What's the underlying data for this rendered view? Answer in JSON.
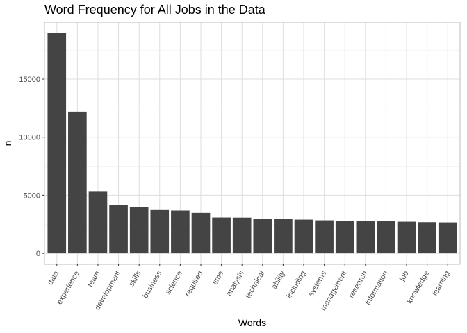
{
  "chart_data": {
    "type": "bar",
    "title": "Word Frequency for All Jobs in the Data",
    "xlabel": "Words",
    "ylabel": "n",
    "categories": [
      "data",
      "experience",
      "team",
      "development",
      "skills",
      "business",
      "science",
      "required",
      "time",
      "analysis",
      "technical",
      "ability",
      "including",
      "systems",
      "management",
      "research",
      "information",
      "job",
      "knowledge",
      "learning"
    ],
    "values": [
      18950,
      12200,
      5300,
      4150,
      3950,
      3780,
      3680,
      3480,
      3080,
      3070,
      2960,
      2950,
      2900,
      2840,
      2780,
      2780,
      2770,
      2720,
      2680,
      2660
    ],
    "yticks": [
      0,
      5000,
      10000,
      15000
    ],
    "ylim": [
      -950,
      19900
    ],
    "grid": true,
    "bar_color": "#444444",
    "grid_major_color": "#dedede",
    "grid_minor_color": "#efefef",
    "panel_border_color": "#bdbdbd"
  }
}
